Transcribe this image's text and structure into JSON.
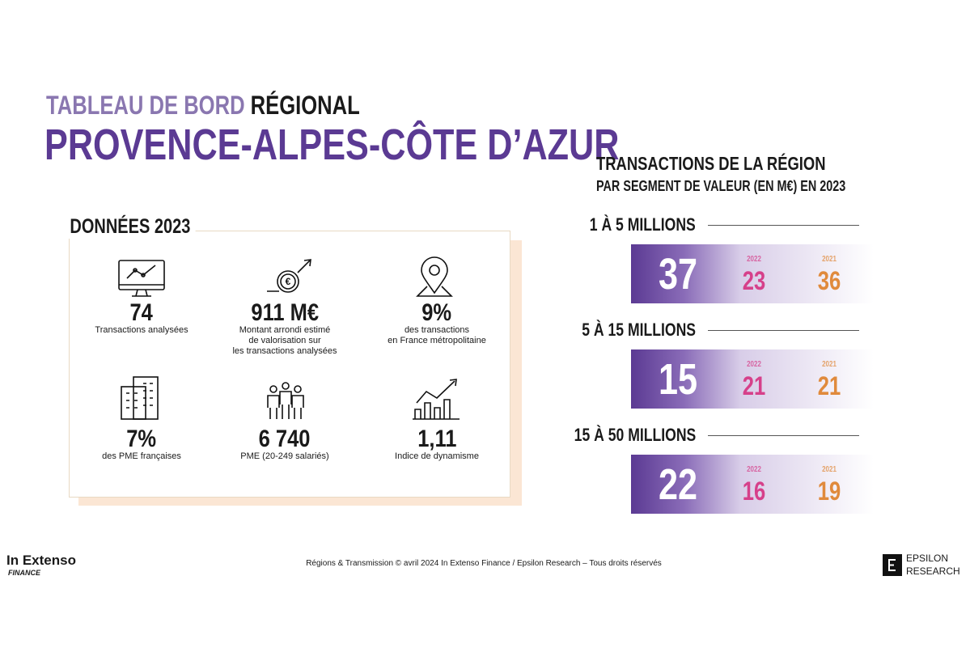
{
  "header": {
    "title_lead": "TABLEAU DE BORD",
    "title_tail": "RÉGIONAL",
    "region": "PROVENCE-ALPES-CÔTE D’AZUR"
  },
  "donnees": {
    "title": "DONNÉES 2023",
    "items": [
      {
        "value": "74",
        "lines": [
          "Transactions analysées"
        ]
      },
      {
        "value": "911 M€",
        "lines": [
          "Montant arrondi estimé",
          "de valorisation sur",
          "les transactions analysées"
        ]
      },
      {
        "value": "9%",
        "lines": [
          "des transactions",
          "en France métropolitaine"
        ]
      },
      {
        "value": "7%",
        "lines": [
          "des PME françaises"
        ]
      },
      {
        "value": "6 740",
        "lines": [
          "PME (20-249 salariés)"
        ]
      },
      {
        "value": "1,11",
        "lines": [
          "Indice de dynamisme"
        ]
      }
    ]
  },
  "transactions": {
    "title": "TRANSACTIONS DE LA RÉGION",
    "subtitle": "PAR SEGMENT DE VALEUR (EN M€) EN 2023",
    "segments": [
      {
        "label": "1 À 5 MILLIONS",
        "value": "37",
        "history": [
          {
            "year": "2022",
            "value": "23"
          },
          {
            "year": "2021",
            "value": "36"
          }
        ]
      },
      {
        "label": "5 À 15 MILLIONS",
        "value": "15",
        "history": [
          {
            "year": "2022",
            "value": "21"
          },
          {
            "year": "2021",
            "value": "21"
          }
        ]
      },
      {
        "label": "15 À 50 MILLIONS",
        "value": "22",
        "history": [
          {
            "year": "2022",
            "value": "16"
          },
          {
            "year": "2021",
            "value": "19"
          }
        ]
      }
    ]
  },
  "footer": {
    "brand": "In Extenso",
    "brand_sub": "FINANCE",
    "copyright": "Régions & Transmission © avril 2024 In Extenso Finance / Epsilon Research – Tous droits réservés",
    "partner_line1": "EPSILON",
    "partner_line2": "RESEARCH"
  }
}
